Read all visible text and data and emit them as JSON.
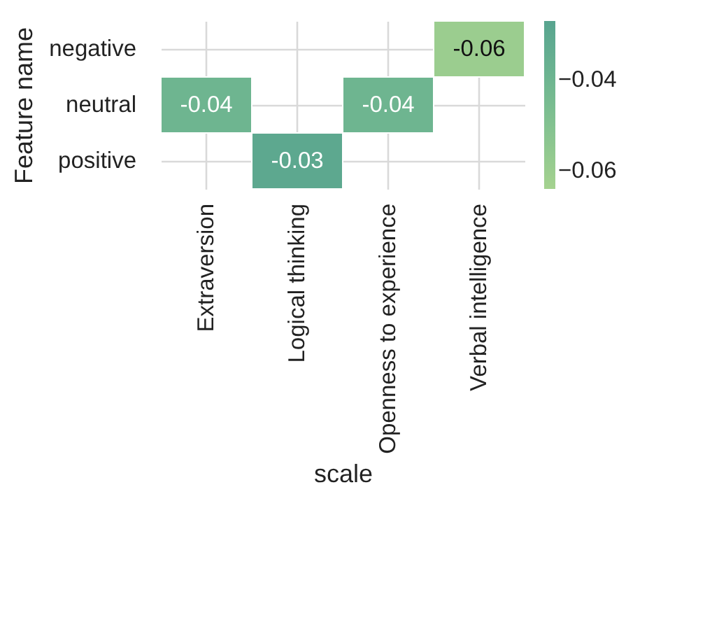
{
  "chart_data": {
    "type": "heatmap",
    "xlabel": "scale",
    "ylabel": "Feature name",
    "categories": [
      "Extraversion",
      "Logical thinking",
      "Openness to experience",
      "Verbal intelligence"
    ],
    "y_categories": [
      "negative",
      "neutral",
      "positive"
    ],
    "cells": [
      [
        null,
        null,
        null,
        -0.06
      ],
      [
        -0.04,
        null,
        -0.04,
        null
      ],
      [
        null,
        -0.03,
        null,
        null
      ]
    ],
    "cell_labels": [
      [
        null,
        null,
        null,
        "-0.06"
      ],
      [
        "-0.04",
        null,
        "-0.04",
        null
      ],
      [
        null,
        "-0.03",
        null,
        null
      ]
    ],
    "clim": [
      -0.064,
      -0.027
    ],
    "cticks": [
      {
        "value": -0.04,
        "label": "−0.04"
      },
      {
        "value": -0.06,
        "label": "−0.06"
      }
    ],
    "colors": [
      "#a5d28f",
      "#58a48f"
    ],
    "grid": true
  }
}
